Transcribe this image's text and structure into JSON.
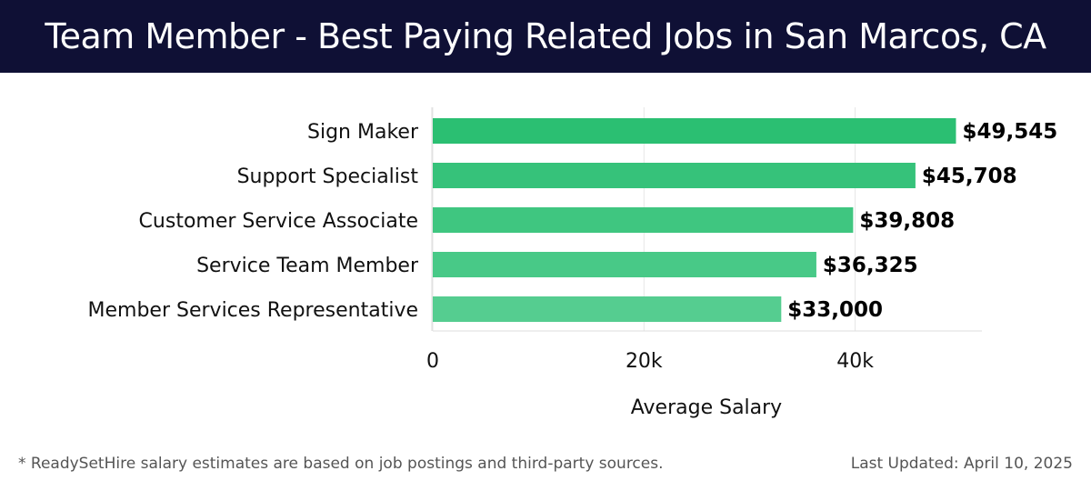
{
  "header": {
    "title": "Team Member - Best Paying Related Jobs in San Marcos, CA"
  },
  "chart_data": {
    "type": "bar",
    "orientation": "horizontal",
    "categories": [
      "Sign Maker",
      "Support Specialist",
      "Customer Service Associate",
      "Service Team Member",
      "Member Services Representative"
    ],
    "values": [
      49545,
      45708,
      39808,
      36325,
      33000
    ],
    "value_labels": [
      "$49,545",
      "$45,708",
      "$39,808",
      "$36,325",
      "$33,000"
    ],
    "xlabel": "Average Salary",
    "ylabel": "",
    "xlim": [
      0,
      52000
    ],
    "xticks": [
      0,
      20000,
      40000
    ],
    "xtick_labels": [
      "0",
      "20k",
      "40k"
    ],
    "grid": true,
    "bar_colors": [
      "#2bbf72",
      "#36c27a",
      "#3fc680",
      "#48c987",
      "#55cd90"
    ]
  },
  "footer": {
    "note": "* ReadySetHire salary estimates are based on job postings and third-party sources.",
    "updated": "Last Updated: April 10, 2025"
  }
}
